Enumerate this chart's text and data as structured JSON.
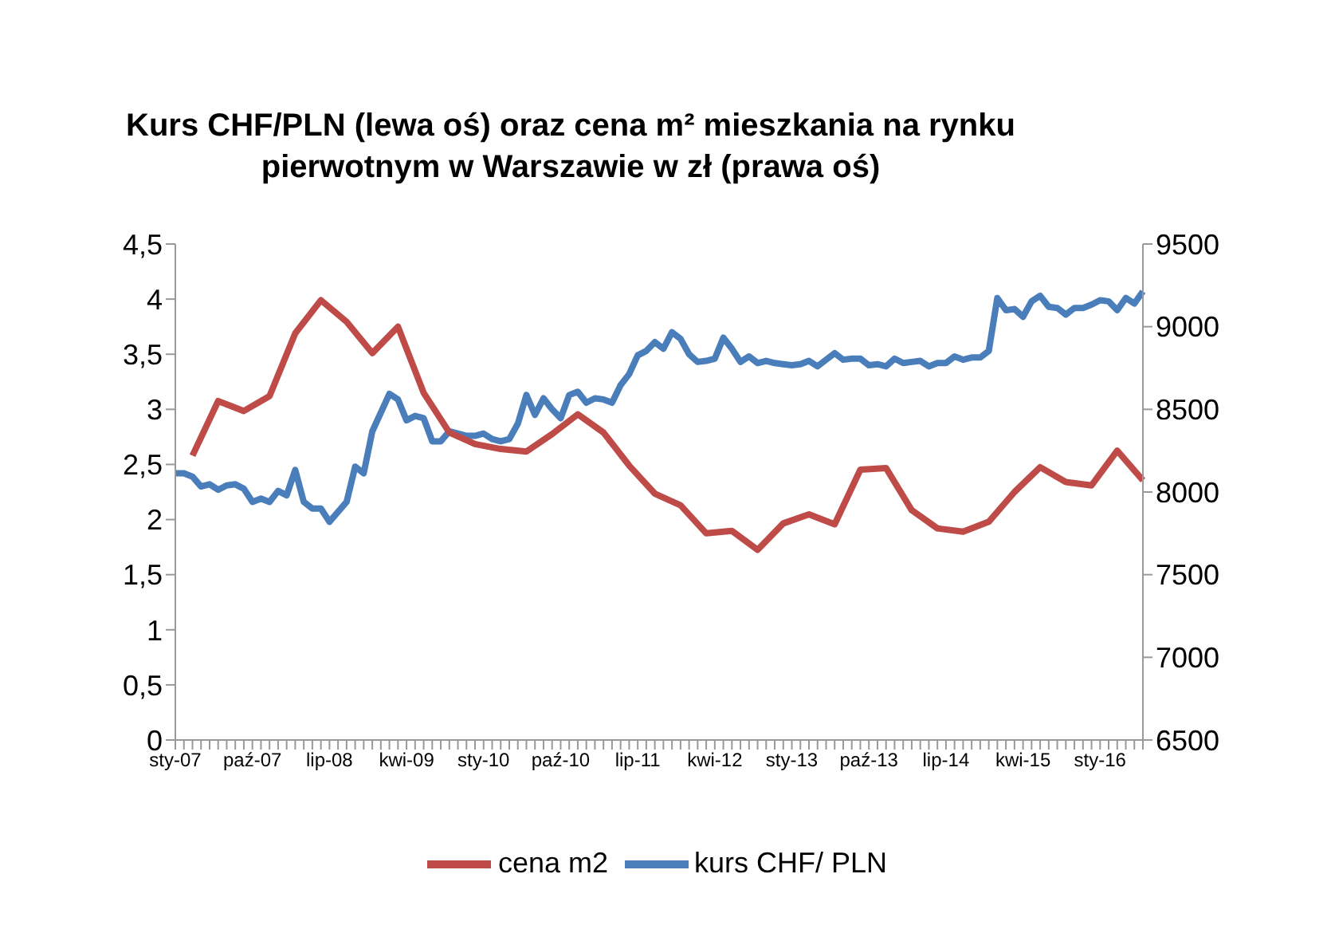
{
  "chart_data": {
    "type": "line",
    "title": "Kurs CHF/PLN (lewa oś) oraz cena m² mieszkania na rynku pierwotnym w Warszawie w zł (prawa oś)",
    "categories": [
      "sty-07",
      null,
      null,
      null,
      null,
      null,
      null,
      null,
      null,
      "paź-07",
      null,
      null,
      null,
      null,
      null,
      null,
      null,
      null,
      "lip-08",
      null,
      null,
      null,
      null,
      null,
      null,
      null,
      null,
      "kwi-09",
      null,
      null,
      null,
      null,
      null,
      null,
      null,
      null,
      "sty-10",
      null,
      null,
      null,
      null,
      null,
      null,
      null,
      null,
      "paź-10",
      null,
      null,
      null,
      null,
      null,
      null,
      null,
      null,
      "lip-11",
      null,
      null,
      null,
      null,
      null,
      null,
      null,
      null,
      "kwi-12",
      null,
      null,
      null,
      null,
      null,
      null,
      null,
      null,
      "sty-13",
      null,
      null,
      null,
      null,
      null,
      null,
      null,
      null,
      "paź-13",
      null,
      null,
      null,
      null,
      null,
      null,
      null,
      null,
      "lip-14",
      null,
      null,
      null,
      null,
      null,
      null,
      null,
      null,
      "kwi-15",
      null,
      null,
      null,
      null,
      null,
      null,
      null,
      null,
      "sty-16",
      null,
      null,
      null,
      null,
      null
    ],
    "series": [
      {
        "name": "kurs CHF/ PLN",
        "color": "#4a7ebb",
        "values": [
          2.42,
          2.42,
          2.39,
          2.3,
          2.32,
          2.27,
          2.31,
          2.32,
          2.28,
          2.16,
          2.19,
          2.16,
          2.26,
          2.22,
          2.45,
          2.16,
          2.1,
          2.1,
          1.98,
          2.07,
          2.16,
          2.48,
          2.42,
          2.8,
          2.97,
          3.14,
          3.09,
          2.9,
          2.94,
          2.92,
          2.71,
          2.71,
          2.8,
          2.78,
          2.76,
          2.76,
          2.78,
          2.73,
          2.71,
          2.73,
          2.87,
          3.13,
          2.95,
          3.1,
          3.0,
          2.92,
          3.13,
          3.16,
          3.06,
          3.1,
          3.09,
          3.06,
          3.22,
          3.32,
          3.49,
          3.53,
          3.61,
          3.55,
          3.7,
          3.64,
          3.5,
          3.43,
          3.44,
          3.46,
          3.65,
          3.55,
          3.43,
          3.48,
          3.42,
          3.44,
          3.42,
          3.41,
          3.4,
          3.41,
          3.44,
          3.39,
          3.45,
          3.51,
          3.45,
          3.46,
          3.46,
          3.4,
          3.41,
          3.39,
          3.46,
          3.42,
          3.43,
          3.44,
          3.39,
          3.42,
          3.42,
          3.48,
          3.45,
          3.47,
          3.47,
          3.53,
          4.01,
          3.9,
          3.91,
          3.84,
          3.98,
          4.03,
          3.93,
          3.92,
          3.86,
          3.92,
          3.92,
          3.95,
          3.99,
          3.98,
          3.9,
          4.01,
          3.96,
          4.07
        ]
      },
      {
        "name": "cena m2",
        "color": "#be4b48",
        "axis": "y2",
        "values": [
          null,
          null,
          8220,
          null,
          null,
          8550,
          null,
          null,
          8490,
          null,
          null,
          8580,
          null,
          null,
          8960,
          null,
          null,
          9160,
          null,
          null,
          9030,
          null,
          null,
          8840,
          null,
          null,
          9000,
          null,
          null,
          8600,
          null,
          null,
          8360,
          null,
          null,
          8290,
          null,
          null,
          8260,
          null,
          null,
          8245,
          null,
          null,
          8350,
          null,
          null,
          8470,
          null,
          null,
          8360,
          null,
          null,
          8160,
          null,
          null,
          7990,
          null,
          null,
          7920,
          null,
          null,
          7750,
          null,
          null,
          7765,
          null,
          null,
          7650,
          null,
          null,
          7810,
          null,
          null,
          7865,
          null,
          null,
          7805,
          null,
          null,
          8135,
          null,
          null,
          8145,
          null,
          null,
          7890,
          null,
          null,
          7780,
          null,
          null,
          7760,
          null,
          null,
          7820,
          null,
          null,
          8000,
          null,
          null,
          8150,
          null,
          null,
          8060,
          null,
          null,
          8040,
          null,
          null,
          8250,
          null,
          null,
          8070
        ]
      }
    ],
    "ylim": [
      0,
      4.5
    ],
    "yticks": [
      0,
      {
        "value": 0.5,
        "label": "0,5"
      },
      1,
      {
        "value": 1.5,
        "label": "1,5"
      },
      2,
      {
        "value": 2.5,
        "label": "2,5"
      },
      3,
      {
        "value": 3.5,
        "label": "3,5"
      },
      4,
      {
        "value": 4.5,
        "label": "4,5"
      }
    ],
    "y2lim": [
      6500,
      9500
    ],
    "y2ticks": [
      6500,
      7000,
      7500,
      8000,
      8500,
      9000,
      9500
    ],
    "legend": "bottom",
    "grid": false,
    "marker": "none",
    "line_style": "solid"
  }
}
